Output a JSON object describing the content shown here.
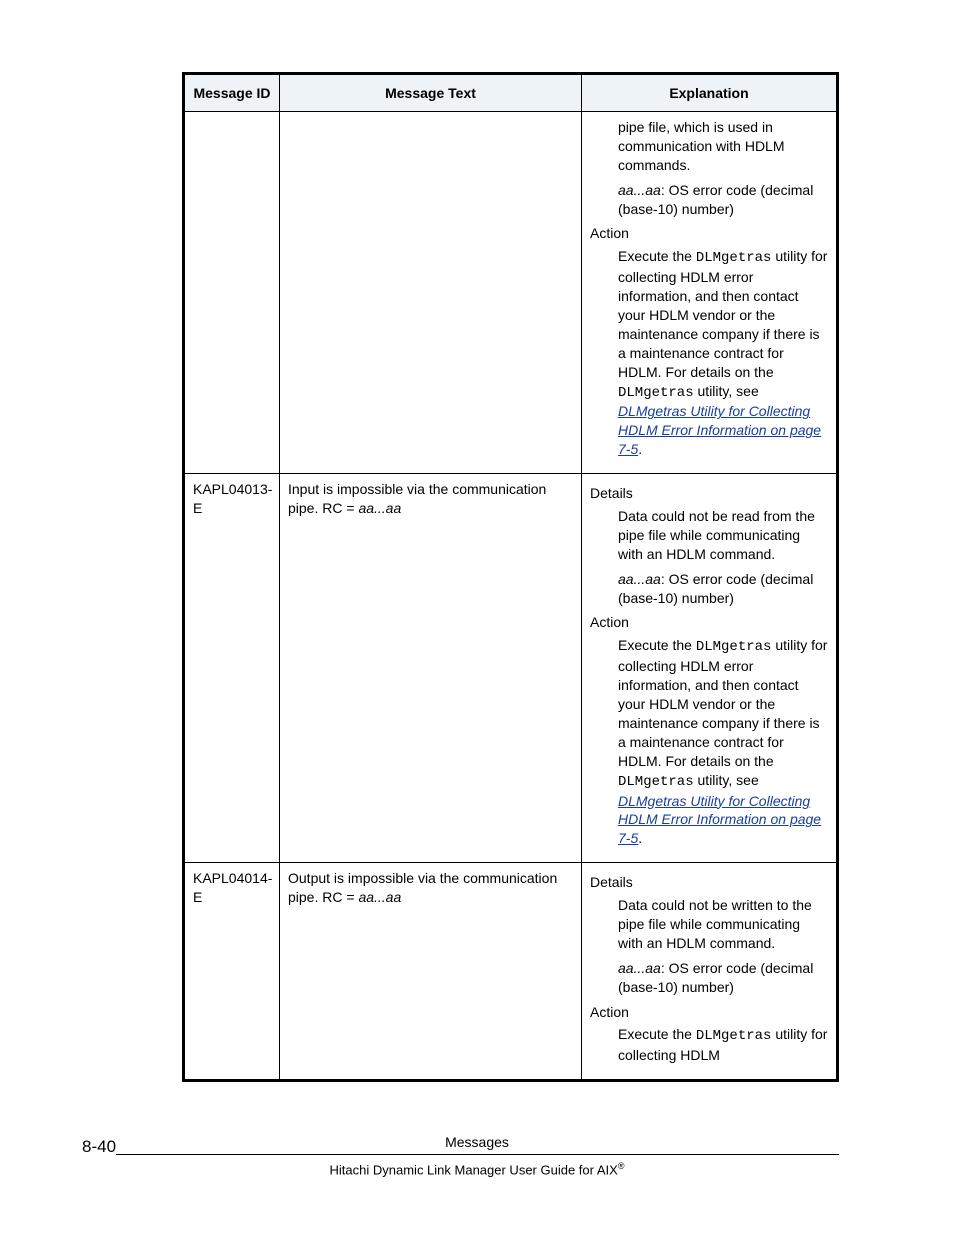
{
  "table": {
    "headers": {
      "id": "Message ID",
      "text": "Message Text",
      "explanation": "Explanation"
    },
    "rows": [
      {
        "id": "",
        "text": "",
        "exp": {
          "pre_details": "pipe file, which is used in communication with HDLM commands.",
          "code_label_italic": "aa...aa",
          "code_label_rest": ": OS error code (decimal (base-10) number)",
          "action_label": "Action",
          "action_prelude": "Execute the ",
          "action_mono1": "DLMgetras",
          "action_mid": " utility for collecting HDLM error information, and then contact your HDLM vendor or the maintenance company if there is a maintenance contract for HDLM. For details on the ",
          "action_mono2": "DLMgetras",
          "action_tail": " utility, see ",
          "action_link": "DLMgetras Utility for Collecting HDLM Error Information on page 7-5",
          "action_period": "."
        }
      },
      {
        "id": "KAPL04013-E",
        "text_pre": "Input is impossible via the communication pipe. RC = ",
        "text_var": "aa...aa",
        "exp": {
          "details_label": "Details",
          "details_body": "Data could not be read from the pipe file while communicating with an HDLM command.",
          "code_label_italic": "aa...aa",
          "code_label_rest": ": OS error code (decimal (base-10) number)",
          "action_label": "Action",
          "action_prelude": "Execute the ",
          "action_mono1": "DLMgetras",
          "action_mid": " utility for collecting HDLM error information, and then contact your HDLM vendor or the maintenance company if there is a maintenance contract for HDLM. For details on the ",
          "action_mono2": "DLMgetras",
          "action_tail": " utility, see ",
          "action_link": "DLMgetras Utility for Collecting HDLM Error Information on page 7-5",
          "action_period": "."
        }
      },
      {
        "id": "KAPL04014-E",
        "text_pre": "Output is impossible via the communication pipe. RC = ",
        "text_var": "aa...aa",
        "exp": {
          "details_label": "Details",
          "details_body": "Data could not be written to the pipe file while communicating with an HDLM command.",
          "code_label_italic": "aa...aa",
          "code_label_rest": ": OS error code (decimal (base-10) number)",
          "action_label": "Action",
          "action_prelude": "Execute the ",
          "action_mono1": "DLMgetras",
          "action_mid": " utility for collecting HDLM"
        }
      }
    ]
  },
  "footer": {
    "page_number": "8-40",
    "section": "Messages",
    "guide": "Hitachi Dynamic Link Manager User Guide for AIX",
    "reg": "®"
  }
}
